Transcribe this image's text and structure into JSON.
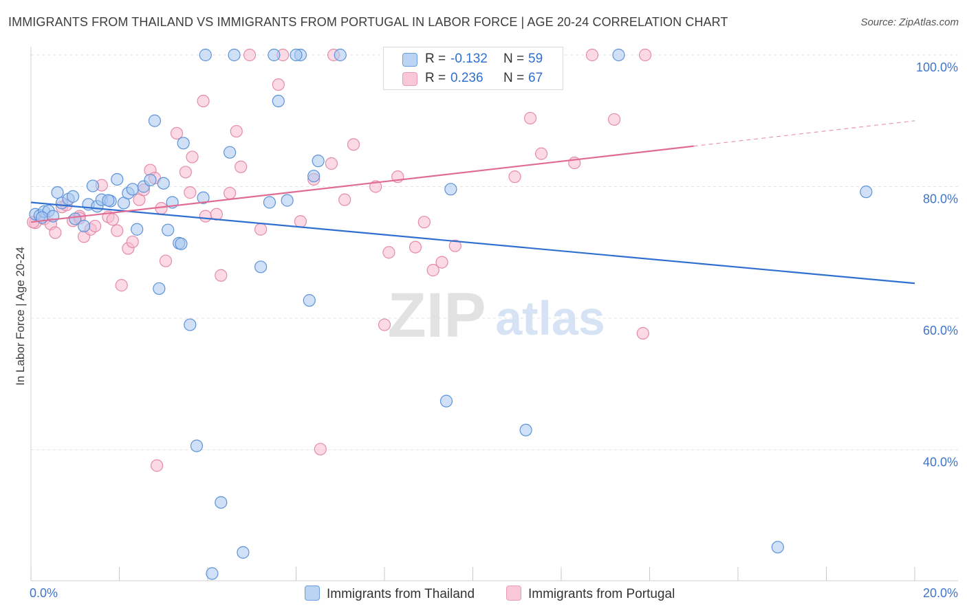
{
  "title": "IMMIGRANTS FROM THAILAND VS IMMIGRANTS FROM PORTUGAL IN LABOR FORCE | AGE 20-24 CORRELATION CHART",
  "source": "Source: ZipAtlas.com",
  "watermark": {
    "zip": "ZIP",
    "atlas": "atlas"
  },
  "legend": {
    "r_label": "R =",
    "n_label": "N =",
    "thailand": {
      "r": "-0.132",
      "n": "59"
    },
    "portugal": {
      "r": "0.236",
      "n": "67"
    }
  },
  "colors": {
    "thailand_fill": "#a9c8f0",
    "thailand_stroke": "#5b92d8",
    "thailand_line": "#2f6fd0",
    "portugal_fill": "#f7bcd0",
    "portugal_stroke": "#e58aa9",
    "portugal_line": "#e06b94",
    "tick_label": "#3f74c9",
    "grid": "#e3e3e3"
  },
  "chart_data": {
    "type": "scatter",
    "title": "IMMIGRANTS FROM THAILAND VS IMMIGRANTS FROM PORTUGAL IN LABOR FORCE | AGE 20-24 CORRELATION CHART",
    "xlabel": "",
    "ylabel": "In Labor Force | Age 20-24",
    "xlim": [
      0,
      20
    ],
    "ylim": [
      20,
      101
    ],
    "x_tick_labels": [
      {
        "value": 0,
        "label": "0.0%"
      },
      {
        "value": 20,
        "label": "20.0%"
      }
    ],
    "y_tick_labels": [
      {
        "value": 100,
        "label": "100.0%"
      },
      {
        "value": 80,
        "label": "80.0%"
      },
      {
        "value": 60,
        "label": "60.0%"
      },
      {
        "value": 40,
        "label": "40.0%"
      }
    ],
    "series": [
      {
        "name": "Immigrants from Thailand",
        "color": "#5b92d8",
        "trendline": {
          "x": [
            0,
            20
          ],
          "y": [
            77.6,
            65.3
          ],
          "dashed_from": null
        },
        "points": [
          [
            0.1,
            75.8
          ],
          [
            0.2,
            75.6
          ],
          [
            0.3,
            76.2
          ],
          [
            0.4,
            76.3
          ],
          [
            0.6,
            79.1
          ],
          [
            0.7,
            77.5
          ],
          [
            0.85,
            78.1
          ],
          [
            0.95,
            78.5
          ],
          [
            1.0,
            75.1
          ],
          [
            1.2,
            74.0
          ],
          [
            1.3,
            77.3
          ],
          [
            1.4,
            80.1
          ],
          [
            1.5,
            77.0
          ],
          [
            1.6,
            78.0
          ],
          [
            1.8,
            77.8
          ],
          [
            1.95,
            81.1
          ],
          [
            2.1,
            77.5
          ],
          [
            2.2,
            79.0
          ],
          [
            2.3,
            79.6
          ],
          [
            2.4,
            73.5
          ],
          [
            2.55,
            80.0
          ],
          [
            2.7,
            81.0
          ],
          [
            2.8,
            90.0
          ],
          [
            2.9,
            64.5
          ],
          [
            3.0,
            80.5
          ],
          [
            3.1,
            73.4
          ],
          [
            3.2,
            77.6
          ],
          [
            3.35,
            71.4
          ],
          [
            3.45,
            86.6
          ],
          [
            3.6,
            59.0
          ],
          [
            3.75,
            40.6
          ],
          [
            3.9,
            78.3
          ],
          [
            3.95,
            100.0
          ],
          [
            4.1,
            21.2
          ],
          [
            4.3,
            32.0
          ],
          [
            4.5,
            85.2
          ],
          [
            4.6,
            100.0
          ],
          [
            4.8,
            24.4
          ],
          [
            5.2,
            67.8
          ],
          [
            5.4,
            77.6
          ],
          [
            5.5,
            100.0
          ],
          [
            5.6,
            93.0
          ],
          [
            5.8,
            77.9
          ],
          [
            6.1,
            100.0
          ],
          [
            6.3,
            62.7
          ],
          [
            6.4,
            81.6
          ],
          [
            6.5,
            83.9
          ],
          [
            7.0,
            100.0
          ],
          [
            9.4,
            47.4
          ],
          [
            9.5,
            79.6
          ],
          [
            11.2,
            43.0
          ],
          [
            13.3,
            100.0
          ],
          [
            16.9,
            25.2
          ],
          [
            18.9,
            79.2
          ],
          [
            0.25,
            75.3
          ],
          [
            3.4,
            71.3
          ],
          [
            6.0,
            100.0
          ],
          [
            0.5,
            75.5
          ],
          [
            1.75,
            77.9
          ]
        ]
      },
      {
        "name": "Immigrants from Portugal",
        "color": "#e58aa9",
        "trendline": {
          "x": [
            0,
            20
          ],
          "y": [
            74.6,
            90.0
          ],
          "dashed_from": 15.0
        },
        "points": [
          [
            0.1,
            74.5
          ],
          [
            0.3,
            75.1
          ],
          [
            0.45,
            74.3
          ],
          [
            0.55,
            73.0
          ],
          [
            0.7,
            76.9
          ],
          [
            0.8,
            77.2
          ],
          [
            0.95,
            74.8
          ],
          [
            1.1,
            75.5
          ],
          [
            1.2,
            72.4
          ],
          [
            1.35,
            73.5
          ],
          [
            1.45,
            74.0
          ],
          [
            1.6,
            80.2
          ],
          [
            1.75,
            75.4
          ],
          [
            1.85,
            75.0
          ],
          [
            1.95,
            73.3
          ],
          [
            2.05,
            65.0
          ],
          [
            2.2,
            70.6
          ],
          [
            2.3,
            71.6
          ],
          [
            2.45,
            78.0
          ],
          [
            2.55,
            79.5
          ],
          [
            2.7,
            82.5
          ],
          [
            2.8,
            81.3
          ],
          [
            2.95,
            76.7
          ],
          [
            3.05,
            68.7
          ],
          [
            3.3,
            88.1
          ],
          [
            3.5,
            82.2
          ],
          [
            3.6,
            79.1
          ],
          [
            3.65,
            84.5
          ],
          [
            3.9,
            93.0
          ],
          [
            3.95,
            75.5
          ],
          [
            4.2,
            75.8
          ],
          [
            4.3,
            66.5
          ],
          [
            4.5,
            79.0
          ],
          [
            4.65,
            88.4
          ],
          [
            4.75,
            83.0
          ],
          [
            4.95,
            100.0
          ],
          [
            5.2,
            73.5
          ],
          [
            5.6,
            95.5
          ],
          [
            5.7,
            100.0
          ],
          [
            6.1,
            74.7
          ],
          [
            6.4,
            81.1
          ],
          [
            6.55,
            40.1
          ],
          [
            6.8,
            83.5
          ],
          [
            6.85,
            100.0
          ],
          [
            7.1,
            78.0
          ],
          [
            7.3,
            86.4
          ],
          [
            7.8,
            80.0
          ],
          [
            8.0,
            59.0
          ],
          [
            8.1,
            70.0
          ],
          [
            8.3,
            81.5
          ],
          [
            8.7,
            70.8
          ],
          [
            8.9,
            74.6
          ],
          [
            9.1,
            67.3
          ],
          [
            9.3,
            68.5
          ],
          [
            9.6,
            71.0
          ],
          [
            10.0,
            100.0
          ],
          [
            10.95,
            81.5
          ],
          [
            11.3,
            90.4
          ],
          [
            11.55,
            85.0
          ],
          [
            12.3,
            83.6
          ],
          [
            12.7,
            100.0
          ],
          [
            13.2,
            90.2
          ],
          [
            13.85,
            57.7
          ],
          [
            13.9,
            100.0
          ],
          [
            2.85,
            37.6
          ],
          [
            1.1,
            75.2
          ],
          [
            0.05,
            74.6
          ]
        ]
      }
    ],
    "legend_entries": [
      "Immigrants from Thailand",
      "Immigrants from Portugal"
    ]
  }
}
